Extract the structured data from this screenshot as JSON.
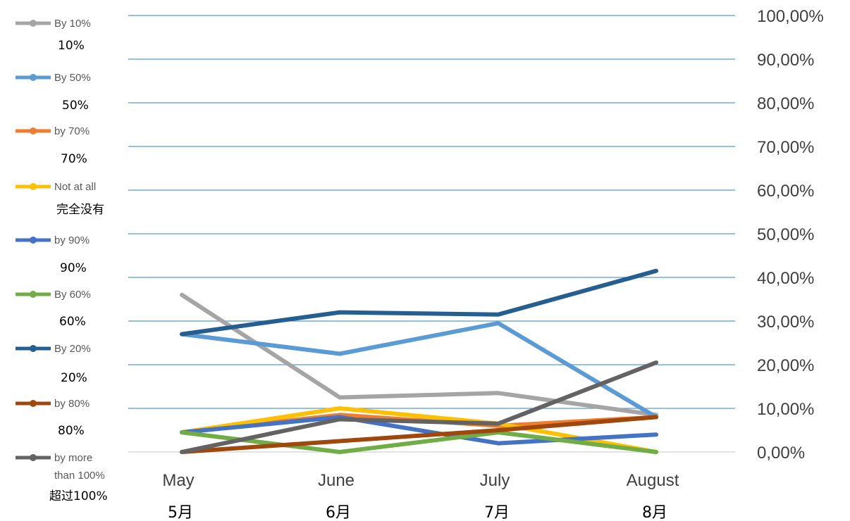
{
  "chart_data": {
    "type": "line",
    "categories": [
      "May",
      "June",
      "July",
      "August"
    ],
    "categories_zh": [
      "5月",
      "6月",
      "7月",
      "8月"
    ],
    "y_axis": {
      "min": 0,
      "max": 1,
      "step": 0.1,
      "position": "right",
      "tick_labels": [
        "0,00%",
        "10,00%",
        "20,00%",
        "30,00%",
        "40,00%",
        "50,00%",
        "60,00%",
        "70,00%",
        "80,00%",
        "90,00%",
        "100,00%"
      ]
    },
    "grid": true,
    "legend_position": "left",
    "series": [
      {
        "name": "By 10%",
        "name_zh": "10%",
        "color": "#A5A5A5",
        "values": [
          0.36,
          0.125,
          0.135,
          0.085
        ]
      },
      {
        "name": "By 50%",
        "name_zh": "50%",
        "color": "#5B9BD5",
        "values": [
          0.27,
          0.225,
          0.295,
          0.08
        ]
      },
      {
        "name": "by 70%",
        "name_zh": "70%",
        "color": "#ED7D31",
        "values": [
          0.045,
          0.085,
          0.06,
          0.08
        ]
      },
      {
        "name": "Not at all",
        "name_zh": "完全没有",
        "color": "#FFC000",
        "values": [
          0.045,
          0.1,
          0.065,
          0.0
        ]
      },
      {
        "name": "by 90%",
        "name_zh": "90%",
        "color": "#4472C4",
        "values": [
          0.045,
          0.08,
          0.02,
          0.04
        ]
      },
      {
        "name": "By 60%",
        "name_zh": "60%",
        "color": "#70AD47",
        "values": [
          0.045,
          0.0,
          0.045,
          0.0
        ]
      },
      {
        "name": "By 20%",
        "name_zh": "20%",
        "color": "#255E91",
        "values": [
          0.27,
          0.32,
          0.315,
          0.415
        ]
      },
      {
        "name": "by 80%",
        "name_zh": "80%",
        "color": "#9E480E",
        "values": [
          0.0,
          0.025,
          0.05,
          0.08
        ]
      },
      {
        "name": "by more than 100%",
        "name_zh": "超过100%",
        "color": "#636363",
        "values": [
          0.0,
          0.075,
          0.065,
          0.205
        ]
      }
    ]
  }
}
